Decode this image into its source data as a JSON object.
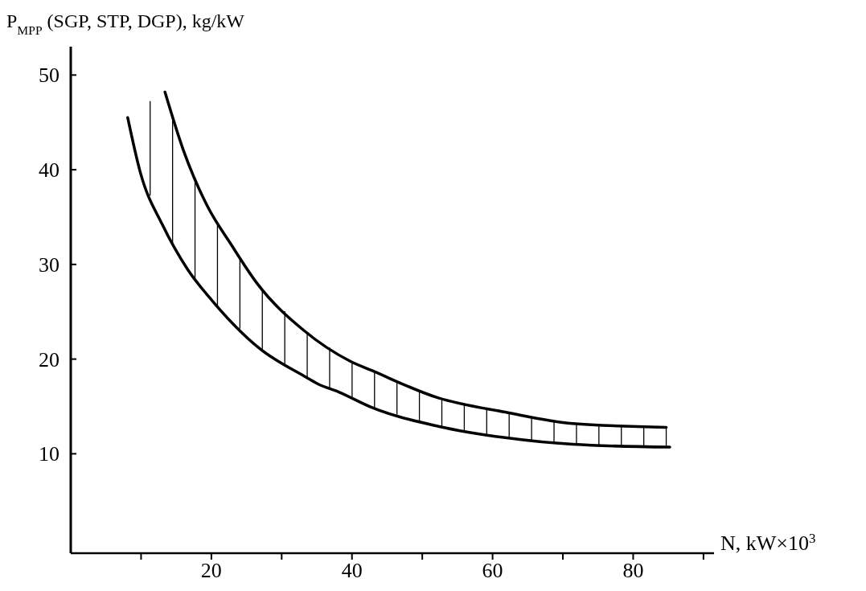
{
  "chart_data": {
    "type": "line",
    "ylabel": "P$_{MPP}$ (SGP, STP, DGP), kg/kW",
    "xlabel": "N, kW×10$^{3}$",
    "xlim": [
      0,
      91.5
    ],
    "ylim": [
      -0.5,
      53
    ],
    "xticks": [
      {
        "value": 10,
        "label": null
      },
      20,
      {
        "value": 30,
        "label": null
      },
      40,
      {
        "value": 50,
        "label": null
      },
      60,
      {
        "value": 70,
        "label": null
      },
      80,
      {
        "value": 90,
        "label": null
      }
    ],
    "yticks": [
      10,
      20,
      30,
      40,
      50
    ],
    "grid": false,
    "line_style": "solid",
    "series": [
      {
        "color": "#000000",
        "x": [
          8.1,
          9.9,
          13.1,
          16.6,
          20.2,
          26.9,
          33.2,
          35.1,
          38.2,
          42.8,
          52.3,
          61.8,
          71.4,
          85.2
        ],
        "values": [
          45.5,
          39.7,
          34.1,
          29.5,
          26.1,
          21.1,
          18.2,
          17.4,
          16.5,
          14.9,
          12.9,
          11.7,
          11.0,
          10.7
        ]
      },
      {
        "color": "#000000",
        "x": [
          13.4,
          16.0,
          19.4,
          22.9,
          26.5,
          33.2,
          39.7,
          42.8,
          52.3,
          61.8,
          71.4,
          84.7
        ],
        "values": [
          48.2,
          42.1,
          36.2,
          32.0,
          28.0,
          23.0,
          19.8,
          18.8,
          15.9,
          14.4,
          13.2,
          12.8
        ]
      }
    ]
  }
}
